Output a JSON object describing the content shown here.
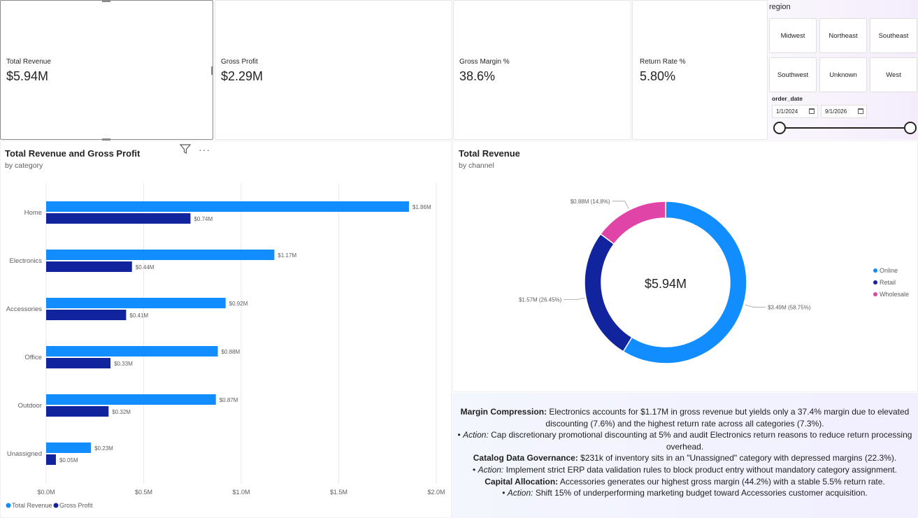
{
  "kpis": [
    {
      "label": "Total Revenue",
      "value": "$5.94M"
    },
    {
      "label": "Gross Profit",
      "value": "$2.29M"
    },
    {
      "label": "Gross Margin %",
      "value": "38.6%"
    },
    {
      "label": "Return Rate %",
      "value": "5.80%"
    }
  ],
  "region_slicer": {
    "title": "region",
    "options": [
      "Midwest",
      "Northeast",
      "Southeast",
      "Southwest",
      "Unknown",
      "West"
    ]
  },
  "date_slicer": {
    "title": "order_date",
    "start": "1/1/2024",
    "end": "9/1/2026"
  },
  "bar_visual": {
    "title": "Total Revenue and Gross Profit",
    "subtitle": "by category",
    "icons": [
      "filter-icon",
      "more-options-icon"
    ]
  },
  "donut_visual": {
    "title": "Total Revenue",
    "subtitle": "by channel",
    "center_label": "$5.94M"
  },
  "colors": {
    "revenue": "#118dff",
    "profit": "#12239e",
    "wholesale": "#e044a7"
  },
  "chart_data": [
    {
      "type": "bar",
      "orientation": "horizontal",
      "categories": [
        "Home",
        "Electronics",
        "Accessories",
        "Office",
        "Outdoor",
        "Unassigned"
      ],
      "series": [
        {
          "name": "Total Revenue",
          "values": [
            1.86,
            1.17,
            0.92,
            0.88,
            0.87,
            0.23
          ],
          "labels": [
            "$1.86M",
            "$1.17M",
            "$0.92M",
            "$0.88M",
            "$0.87M",
            "$0.23M"
          ]
        },
        {
          "name": "Gross Profit",
          "values": [
            0.74,
            0.44,
            0.41,
            0.33,
            0.32,
            0.05
          ],
          "labels": [
            "$0.74M",
            "$0.44M",
            "$0.41M",
            "$0.33M",
            "$0.32M",
            "$0.05M"
          ]
        }
      ],
      "xticks": [
        "$0.0M",
        "$0.5M",
        "$1.0M",
        "$1.5M",
        "$2.0M"
      ],
      "xlim": [
        0,
        2.0
      ],
      "grid": true,
      "legend_position": "bottom-left"
    },
    {
      "type": "pie",
      "variant": "donut",
      "slices": [
        {
          "name": "Online",
          "value": 3.49,
          "label": "$3.49M (58.75%)"
        },
        {
          "name": "Retail",
          "value": 1.57,
          "label": "$1.57M (26.45%)"
        },
        {
          "name": "Wholesale",
          "value": 0.88,
          "label": "$0.88M (14.8%)"
        }
      ],
      "legend_position": "right"
    }
  ],
  "insights": [
    [
      {
        "t": "Margin Compression:",
        "b": true
      },
      {
        "t": " Electronics accounts for $1.17M in gross revenue but yields only a 37.4% margin due to elevated discounting (7.6%) and the highest return rate across all categories (7.3%)."
      }
    ],
    [
      {
        "t": "• "
      },
      {
        "t": "Action:",
        "i": true
      },
      {
        "t": " Cap discretionary promotional discounting at 5% and audit Electronics return reasons to reduce return processing overhead."
      }
    ],
    [
      {
        "t": "Catalog Data Governance:",
        "b": true
      },
      {
        "t": " $231k of inventory sits in an \"Unassigned\" category with depressed margins (22.3%)."
      }
    ],
    [
      {
        "t": "• "
      },
      {
        "t": "Action:",
        "i": true
      },
      {
        "t": " Implement strict ERP data validation rules to block product entry without mandatory category assignment."
      }
    ],
    [
      {
        "t": "Capital Allocation:",
        "b": true
      },
      {
        "t": " Accessories generates our highest gross margin (44.2%) with a stable 5.5% return rate."
      }
    ],
    [
      {
        "t": "• "
      },
      {
        "t": "Action:",
        "i": true
      },
      {
        "t": " Shift 15% of underperforming marketing budget toward Accessories customer acquisition."
      }
    ]
  ]
}
